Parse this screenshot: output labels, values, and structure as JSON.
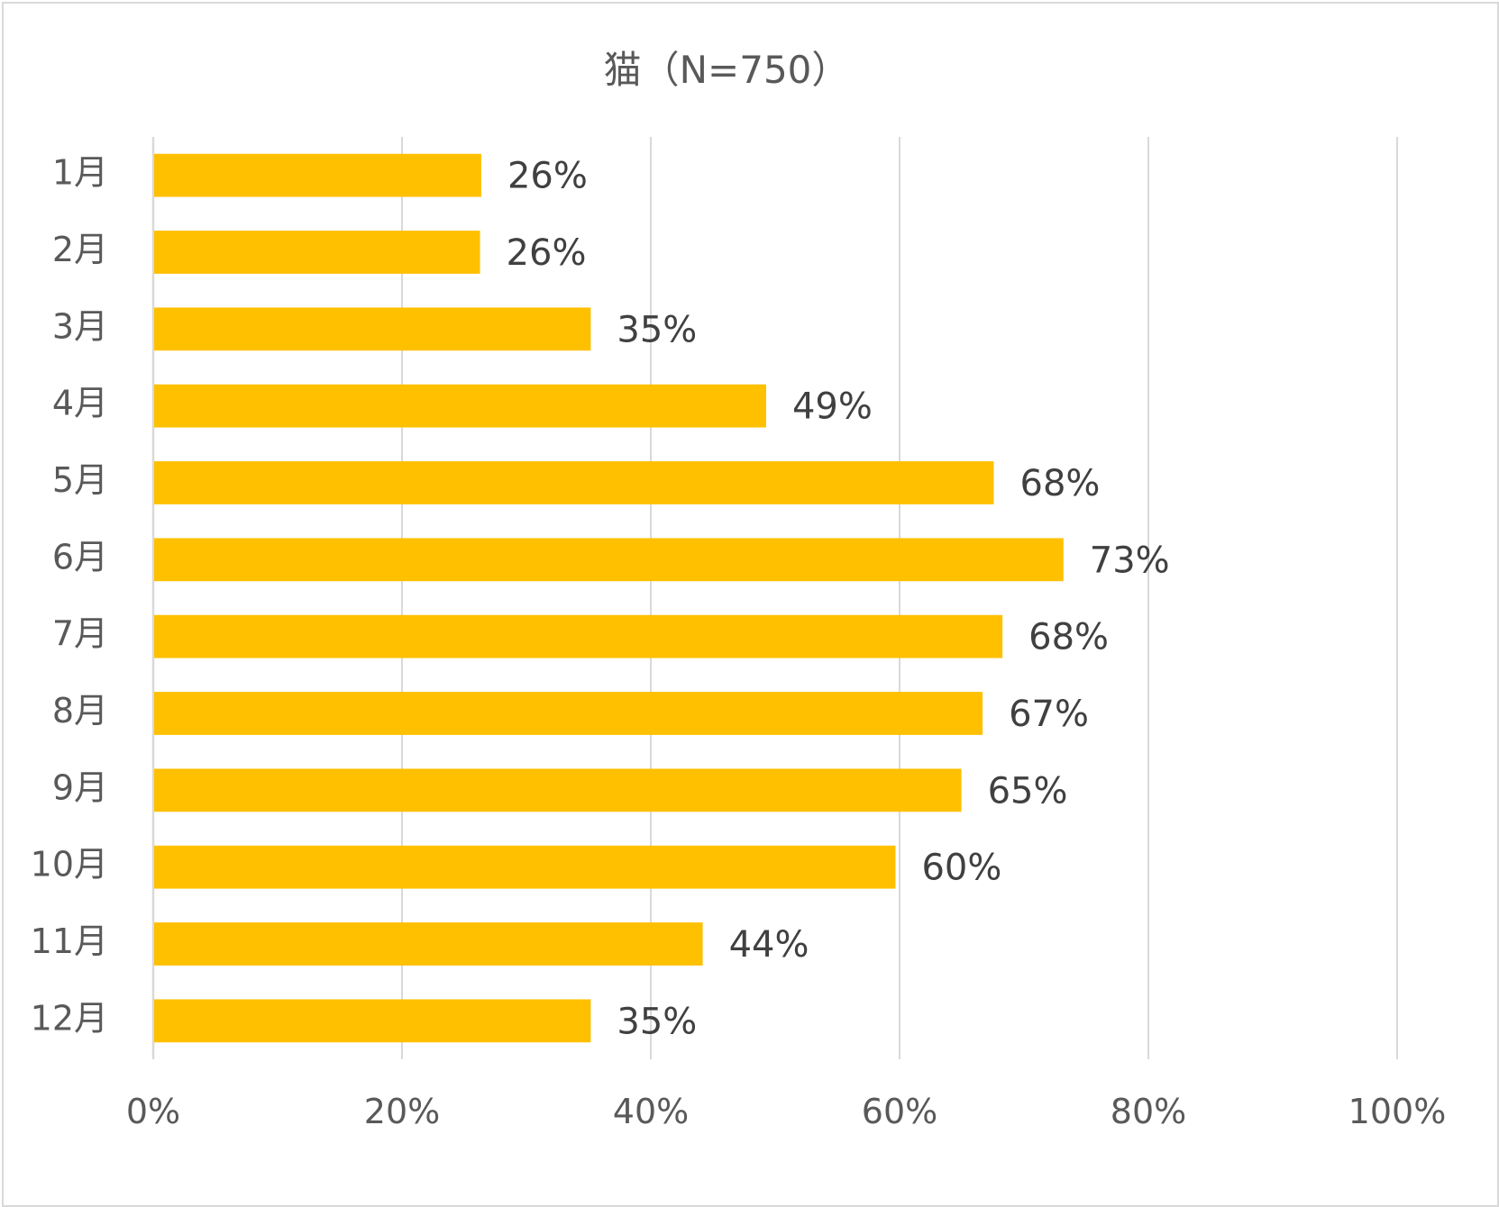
{
  "chart_data": {
    "type": "bar",
    "orientation": "horizontal",
    "title": "猫（N=750）",
    "categories": [
      "1月",
      "2月",
      "3月",
      "4月",
      "5月",
      "6月",
      "7月",
      "8月",
      "9月",
      "10月",
      "11月",
      "12月"
    ],
    "values": [
      26.3,
      26.2,
      35.1,
      49.2,
      67.5,
      73.1,
      68.2,
      66.6,
      64.9,
      59.6,
      44.1,
      35.1
    ],
    "data_labels": [
      "26%",
      "26%",
      "35%",
      "49%",
      "68%",
      "73%",
      "68%",
      "67%",
      "65%",
      "60%",
      "44%",
      "35%"
    ],
    "xlim": [
      0,
      100
    ],
    "x_ticks": [
      0,
      20,
      40,
      60,
      80,
      100
    ],
    "x_tick_labels": [
      "0%",
      "20%",
      "40%",
      "60%",
      "80%",
      "100%"
    ],
    "xlabel": "",
    "ylabel": "",
    "grid": "vertical",
    "legend": "none",
    "bar_color": "#FFC000",
    "grid_color": "#d9d9d9"
  }
}
